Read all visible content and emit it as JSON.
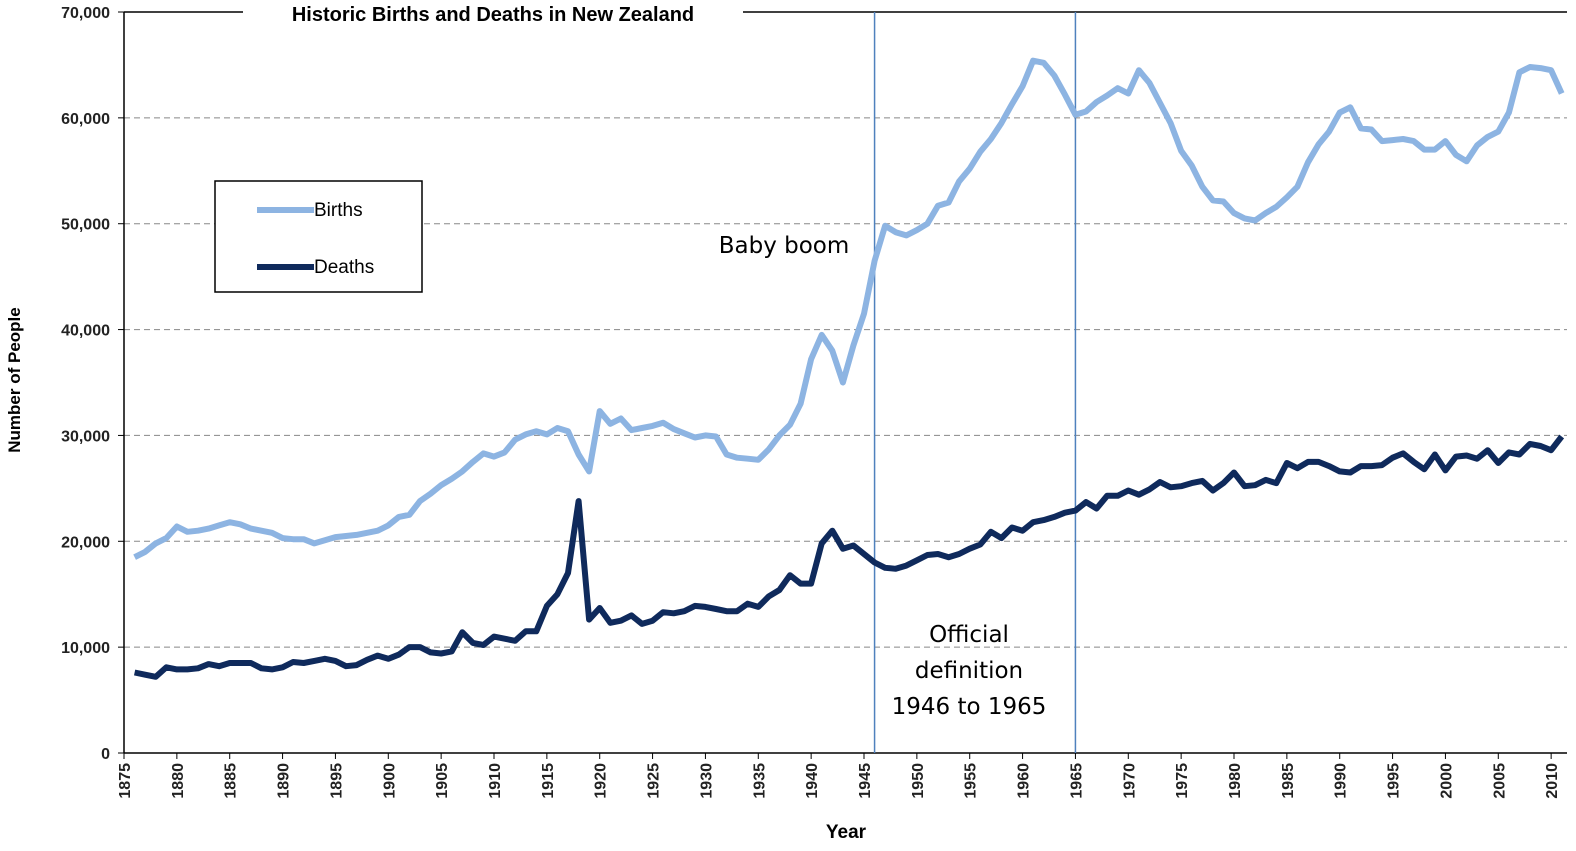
{
  "chart_data": {
    "type": "line",
    "title": "Historic Births and Deaths in New Zealand",
    "x_label": "Year",
    "y_label": "Number of People",
    "x": [
      1876,
      1877,
      1878,
      1879,
      1880,
      1881,
      1882,
      1883,
      1884,
      1885,
      1886,
      1887,
      1888,
      1889,
      1890,
      1891,
      1892,
      1893,
      1894,
      1895,
      1896,
      1897,
      1898,
      1899,
      1900,
      1901,
      1902,
      1903,
      1904,
      1905,
      1906,
      1907,
      1908,
      1909,
      1910,
      1911,
      1912,
      1913,
      1914,
      1915,
      1916,
      1917,
      1918,
      1919,
      1920,
      1921,
      1922,
      1923,
      1924,
      1925,
      1926,
      1927,
      1928,
      1929,
      1930,
      1931,
      1932,
      1933,
      1934,
      1935,
      1936,
      1937,
      1938,
      1939,
      1940,
      1941,
      1942,
      1943,
      1944,
      1945,
      1946,
      1947,
      1948,
      1949,
      1950,
      1951,
      1952,
      1953,
      1954,
      1955,
      1956,
      1957,
      1958,
      1959,
      1960,
      1961,
      1962,
      1963,
      1964,
      1965,
      1966,
      1967,
      1968,
      1969,
      1970,
      1971,
      1972,
      1973,
      1974,
      1975,
      1976,
      1977,
      1978,
      1979,
      1980,
      1981,
      1982,
      1983,
      1984,
      1985,
      1986,
      1987,
      1988,
      1989,
      1990,
      1991,
      1992,
      1993,
      1994,
      1995,
      1996,
      1997,
      1998,
      1999,
      2000,
      2001,
      2002,
      2003,
      2004,
      2005,
      2006,
      2007,
      2008,
      2009,
      2010,
      2011
    ],
    "series": [
      {
        "name": "Births",
        "color": "#8db4e2",
        "values": [
          18500,
          19000,
          19800,
          20300,
          21400,
          20900,
          21000,
          21200,
          21500,
          21800,
          21600,
          21200,
          21000,
          20800,
          20300,
          20200,
          20200,
          19800,
          20100,
          20400,
          20500,
          20600,
          20800,
          21000,
          21500,
          22300,
          22500,
          23800,
          24500,
          25300,
          25900,
          26600,
          27500,
          28300,
          28000,
          28400,
          29600,
          30100,
          30400,
          30100,
          30700,
          30400,
          28200,
          26600,
          32300,
          31100,
          31600,
          30500,
          30700,
          30900,
          31200,
          30600,
          30200,
          29800,
          30000,
          29900,
          28200,
          27900,
          27800,
          27700,
          28700,
          30000,
          31000,
          33000,
          37200,
          39500,
          38000,
          35000,
          38500,
          41500,
          46500,
          49800,
          49200,
          48900,
          49400,
          50000,
          51700,
          52000,
          54000,
          55200,
          56800,
          58000,
          59500,
          61300,
          63000,
          65400,
          65200,
          64000,
          62200,
          60300,
          60600,
          61500,
          62100,
          62800,
          62300,
          64500,
          63300,
          61400,
          59500,
          56900,
          55500,
          53500,
          52200,
          52100,
          51000,
          50500,
          50300,
          51000,
          51600,
          52500,
          53500,
          55800,
          57500,
          58700,
          60500,
          61000,
          59000,
          58900,
          57800,
          57900,
          58000,
          57800,
          57000,
          57000,
          57800,
          56500,
          55900,
          57400,
          58200,
          58700,
          60500,
          64300,
          64800,
          64700,
          64500,
          62300
        ]
      },
      {
        "name": "Deaths",
        "color": "#0f2a5c",
        "values": [
          7600,
          7400,
          7200,
          8100,
          7900,
          7900,
          8000,
          8400,
          8200,
          8500,
          8500,
          8500,
          8000,
          7900,
          8100,
          8600,
          8500,
          8700,
          8900,
          8700,
          8200,
          8300,
          8800,
          9200,
          8900,
          9300,
          10000,
          10000,
          9500,
          9400,
          9600,
          11400,
          10400,
          10200,
          11000,
          10800,
          10600,
          11500,
          11500,
          13900,
          15000,
          17000,
          23800,
          12600,
          13700,
          12300,
          12500,
          13000,
          12200,
          12500,
          13300,
          13200,
          13400,
          13900,
          13800,
          13600,
          13400,
          13400,
          14100,
          13800,
          14800,
          15400,
          16800,
          16000,
          16000,
          19800,
          21000,
          19300,
          19600,
          18800,
          18000,
          17500,
          17400,
          17700,
          18200,
          18700,
          18800,
          18500,
          18800,
          19300,
          19700,
          20900,
          20300,
          21300,
          21000,
          21800,
          22000,
          22300,
          22700,
          22900,
          23700,
          23100,
          24300,
          24300,
          24800,
          24400,
          24900,
          25600,
          25100,
          25200,
          25500,
          25700,
          24800,
          25500,
          26500,
          25200,
          25300,
          25800,
          25500,
          27400,
          26900,
          27500,
          27500,
          27100,
          26600,
          26500,
          27100,
          27100,
          27200,
          27900,
          28300,
          27500,
          26800,
          28200,
          26700,
          28000,
          28100,
          27800,
          28600,
          27400,
          28400,
          28200,
          29200,
          29000,
          28600,
          29900
        ]
      }
    ],
    "xlim": [
      1875,
      2011.5
    ],
    "xticks": [
      1875,
      1880,
      1885,
      1890,
      1895,
      1900,
      1905,
      1910,
      1915,
      1920,
      1925,
      1930,
      1935,
      1940,
      1945,
      1950,
      1955,
      1960,
      1965,
      1970,
      1975,
      1980,
      1985,
      1990,
      1995,
      2000,
      2005,
      2010
    ],
    "ylim": [
      0,
      70000
    ],
    "yticks": [
      0,
      {
        "value": 10000,
        "label": "10,000"
      },
      {
        "value": 20000,
        "label": "20,000"
      },
      {
        "value": 30000,
        "label": "30,000"
      },
      {
        "value": 40000,
        "label": "40,000"
      },
      {
        "value": 50000,
        "label": "50,000"
      },
      {
        "value": 60000,
        "label": "60,000"
      },
      {
        "value": 70000,
        "label": "70,000"
      }
    ],
    "grid": true,
    "vlines": [
      1946,
      1965
    ],
    "annotations": [
      {
        "lines": [
          "Baby boom"
        ]
      },
      {
        "lines": [
          "Official",
          "definition",
          "1946  to 1965"
        ]
      }
    ]
  }
}
